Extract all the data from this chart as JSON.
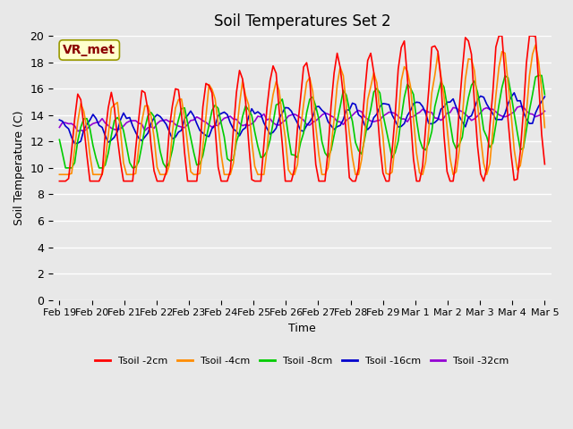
{
  "title": "Soil Temperatures Set 2",
  "xlabel": "Time",
  "ylabel": "Soil Temperature (C)",
  "ylim": [
    0,
    20
  ],
  "yticks": [
    0,
    2,
    4,
    6,
    8,
    10,
    12,
    14,
    16,
    18,
    20
  ],
  "background_color": "#e8e8e8",
  "plot_bg_color": "#e8e8e8",
  "annotation_text": "VR_met",
  "annotation_color": "#8b0000",
  "annotation_bg": "#ffffcc",
  "series_colors": [
    "#ff0000",
    "#ff8c00",
    "#00cc00",
    "#0000cd",
    "#9400d3"
  ],
  "series_labels": [
    "Tsoil -2cm",
    "Tsoil -4cm",
    "Tsoil -8cm",
    "Tsoil -16cm",
    "Tsoil -32cm"
  ],
  "x_tick_labels": [
    "Feb 19",
    "Feb 20",
    "Feb 21",
    "Feb 22",
    "Feb 23",
    "Feb 24",
    "Feb 25",
    "Feb 26",
    "Feb 27",
    "Feb 28",
    "Feb 29",
    "Mar 1",
    "Mar 2",
    "Mar 3",
    "Mar 4",
    "Mar 5"
  ],
  "n_points": 160,
  "seed": 42
}
